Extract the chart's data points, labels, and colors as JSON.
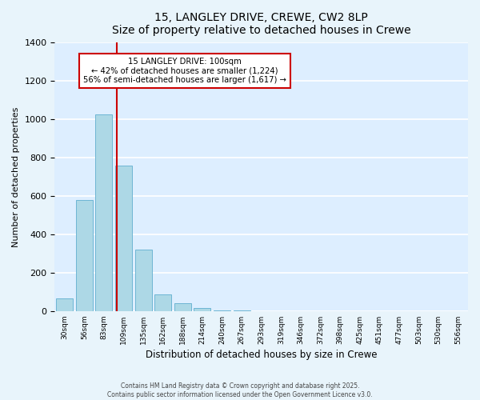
{
  "title": "15, LANGLEY DRIVE, CREWE, CW2 8LP",
  "subtitle": "Size of property relative to detached houses in Crewe",
  "xlabel": "Distribution of detached houses by size in Crewe",
  "ylabel": "Number of detached properties",
  "bar_color": "#add8e6",
  "bar_edge_color": "#6eb5d4",
  "background_color": "#ddeeff",
  "grid_color": "white",
  "bins": [
    "30sqm",
    "56sqm",
    "83sqm",
    "109sqm",
    "135sqm",
    "162sqm",
    "188sqm",
    "214sqm",
    "240sqm",
    "267sqm",
    "293sqm",
    "319sqm",
    "346sqm",
    "372sqm",
    "398sqm",
    "425sqm",
    "451sqm",
    "477sqm",
    "503sqm",
    "530sqm",
    "556sqm"
  ],
  "counts": [
    65,
    580,
    1025,
    760,
    320,
    88,
    40,
    18,
    5,
    2,
    0,
    0,
    0,
    0,
    0,
    0,
    0,
    0,
    0,
    0,
    0
  ],
  "ylim": [
    0,
    1400
  ],
  "yticks": [
    0,
    200,
    400,
    600,
    800,
    1000,
    1200,
    1400
  ],
  "annotation_title": "15 LANGLEY DRIVE: 100sqm",
  "annotation_line1": "← 42% of detached houses are smaller (1,224)",
  "annotation_line2": "56% of semi-detached houses are larger (1,617) →",
  "annotation_box_color": "white",
  "annotation_border_color": "#cc0000",
  "vline_color": "#cc0000",
  "footer_line1": "Contains HM Land Registry data © Crown copyright and database right 2025.",
  "footer_line2": "Contains public sector information licensed under the Open Government Licence v3.0."
}
